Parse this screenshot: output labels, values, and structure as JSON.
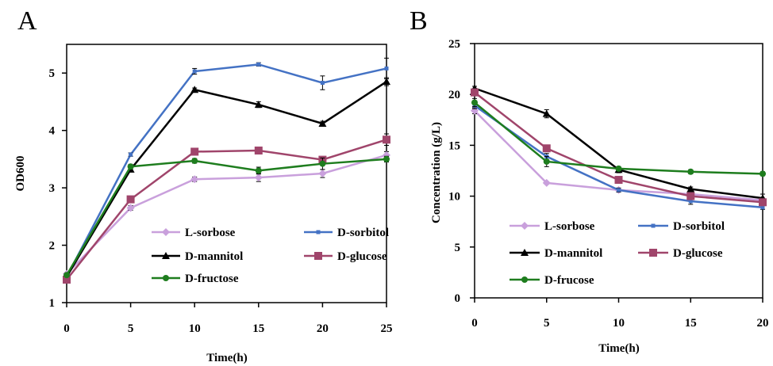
{
  "panels": [
    {
      "letter": "A",
      "chart_data": {
        "type": "line",
        "title": "",
        "xlabel": "Time(h)",
        "ylabel": "OD600",
        "x": [
          0,
          5,
          10,
          15,
          20,
          25
        ],
        "xlim": [
          0,
          25
        ],
        "ylim": [
          1,
          5.5
        ],
        "xticks": [
          0,
          5,
          10,
          15,
          20,
          25
        ],
        "yticks": [
          1,
          2,
          3,
          4,
          5
        ],
        "grid": false,
        "legend": "bottom-right, inside",
        "series": [
          {
            "name": "L-sorbose",
            "color": "#c9a0dc",
            "marker": "diamond",
            "values": [
              1.5,
              2.65,
              3.15,
              3.18,
              3.25,
              3.57
            ],
            "err": [
              0,
              0.04,
              0.04,
              0.07,
              0.07,
              0.06
            ]
          },
          {
            "name": "D-sorbitol",
            "color": "#4472c4",
            "marker": "square-small",
            "values": [
              1.45,
              3.58,
              5.03,
              5.15,
              4.83,
              5.08
            ],
            "err": [
              0,
              0.03,
              0.05,
              0.03,
              0.12,
              0.18
            ]
          },
          {
            "name": "D-mannitol",
            "color": "#000000",
            "marker": "triangle",
            "values": [
              1.45,
              3.32,
              4.71,
              4.45,
              4.12,
              4.85
            ],
            "err": [
              0,
              0.04,
              0.03,
              0.05,
              0.04,
              0.07
            ]
          },
          {
            "name": "D-glucose",
            "color": "#a0456b",
            "marker": "square",
            "values": [
              1.4,
              2.8,
              3.63,
              3.65,
              3.49,
              3.84
            ],
            "err": [
              0,
              0.04,
              0.05,
              0.04,
              0.04,
              0.1
            ]
          },
          {
            "name": "D-fructose",
            "color": "#1e7d1e",
            "marker": "circle",
            "values": [
              1.48,
              3.37,
              3.47,
              3.3,
              3.42,
              3.5
            ],
            "err": [
              0,
              0.04,
              0.04,
              0.06,
              0.1,
              0.05
            ]
          }
        ]
      }
    },
    {
      "letter": "B",
      "chart_data": {
        "type": "line",
        "title": "",
        "xlabel": "Time(h)",
        "ylabel": "Concentration (g/L)",
        "x": [
          0,
          5,
          10,
          15,
          20
        ],
        "xlim": [
          0,
          20
        ],
        "ylim": [
          0,
          25
        ],
        "xticks": [
          0,
          5,
          10,
          15,
          20
        ],
        "yticks": [
          0,
          5,
          10,
          15,
          20,
          25
        ],
        "grid": false,
        "legend": "bottom, inside",
        "series": [
          {
            "name": "L-sorbose",
            "color": "#c9a0dc",
            "marker": "diamond",
            "values": [
              18.4,
              11.3,
              10.6,
              10.2,
              9.6
            ],
            "err": [
              0.3,
              0.1,
              0.1,
              0.3,
              0.2
            ]
          },
          {
            "name": "D-sorbitol",
            "color": "#4472c4",
            "marker": "square-small",
            "values": [
              18.9,
              13.9,
              10.6,
              9.5,
              8.9
            ],
            "err": [
              0.3,
              0.3,
              0.2,
              0.3,
              0.2
            ]
          },
          {
            "name": "D-mannitol",
            "color": "#000000",
            "marker": "triangle",
            "values": [
              20.6,
              18.1,
              12.6,
              10.7,
              9.8
            ],
            "err": [
              0.2,
              0.4,
              0.3,
              0.2,
              0.4
            ]
          },
          {
            "name": "D-glucose",
            "color": "#a0456b",
            "marker": "square",
            "values": [
              20.2,
              14.7,
              11.6,
              10.0,
              9.4
            ],
            "err": [
              0.3,
              0.3,
              0.3,
              0.2,
              0.3
            ]
          },
          {
            "name": "D-frucose",
            "color": "#1e7d1e",
            "marker": "circle",
            "values": [
              19.2,
              13.4,
              12.7,
              12.4,
              12.2
            ],
            "err": [
              0.4,
              0.5,
              0.2,
              0.2,
              0.2
            ]
          }
        ]
      }
    }
  ]
}
